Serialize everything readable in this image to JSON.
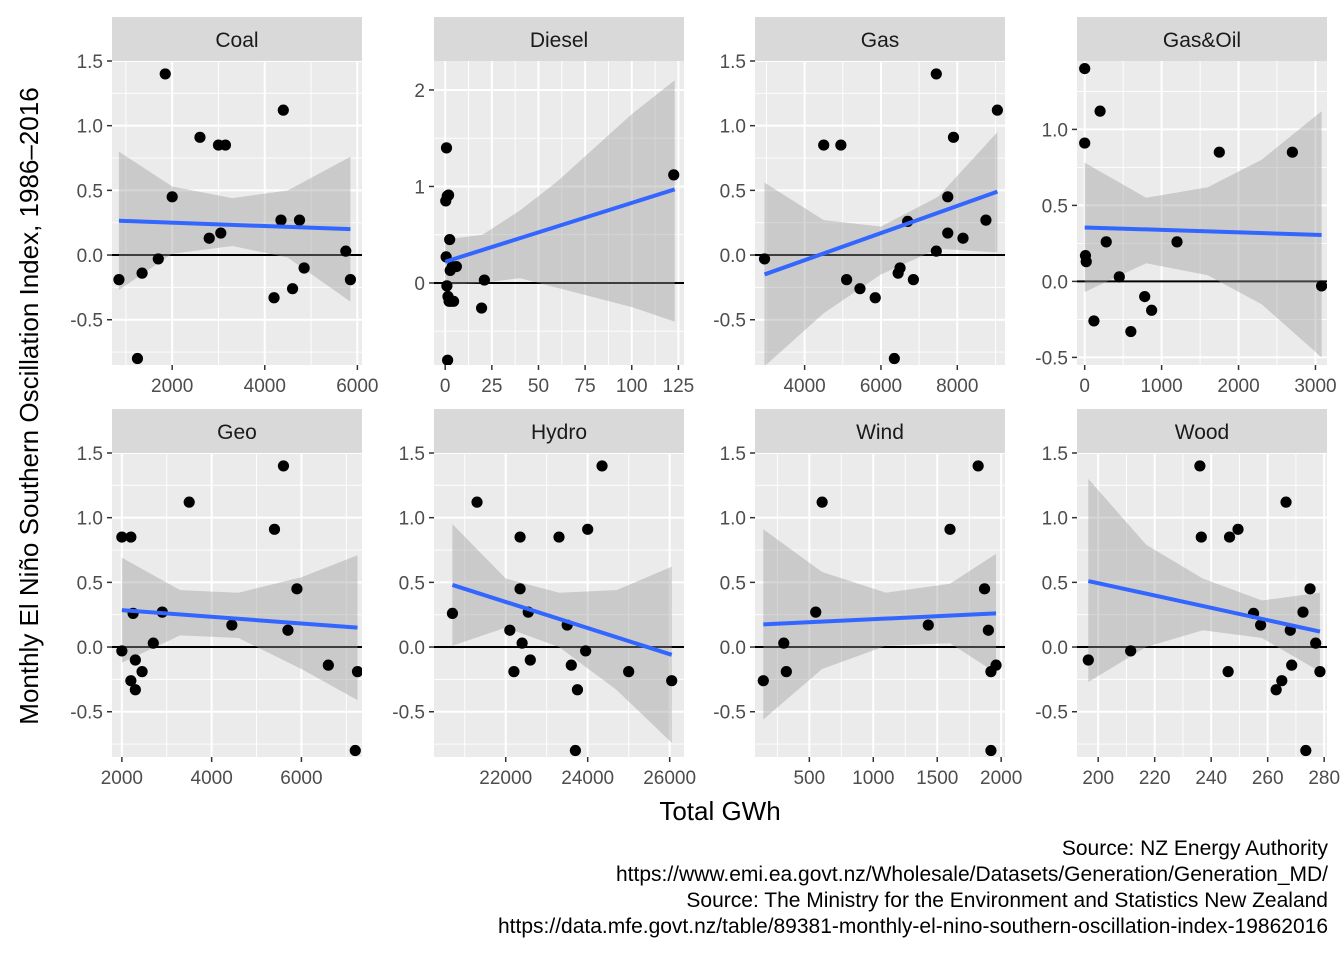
{
  "figure": {
    "xlabel": "Total GWh",
    "ylabel": "Monthly El Niño Southern Oscillation Index, 1986–2016",
    "captions": [
      "Source: NZ Energy Authority",
      "https://www.emi.ea.govt.nz/Wholesale/Datasets/Generation/Generation_MD/",
      "Source: The Ministry for the Environment and Statistics New Zealand",
      "https://data.mfe.govt.nz/table/89381-monthly-el-nino-southern-oscillation-index-19862016"
    ]
  },
  "colors": {
    "panel_bg": "#ebebeb",
    "strip_bg": "#d9d9d9",
    "grid": "#ffffff",
    "point": "#000000",
    "fit_line": "#3366ff",
    "ribbon": "#999999",
    "hline": "#000000",
    "tick_text": "#4d4d4d",
    "strip_text": "#1a1a1a"
  },
  "chart_data": [
    {
      "type": "scatter",
      "title": "Coal",
      "xlim": [
        700,
        6100
      ],
      "ylim": [
        -0.85,
        1.5
      ],
      "x_ticks": [
        2000,
        4000,
        6000
      ],
      "x_tick_labels": [
        "2000",
        "4000",
        "6000"
      ],
      "y_ticks": [
        -0.5,
        0,
        0.5,
        1,
        1.5
      ],
      "y_tick_labels": [
        "-0.5",
        "0.0",
        "0.5",
        "1.0",
        "1.5"
      ],
      "points": [
        [
          850,
          -0.19
        ],
        [
          1250,
          -0.8
        ],
        [
          1350,
          -0.14
        ],
        [
          1700,
          -0.03
        ],
        [
          1850,
          1.4
        ],
        [
          2000,
          0.45
        ],
        [
          2600,
          0.91
        ],
        [
          2800,
          0.13
        ],
        [
          3000,
          0.85
        ],
        [
          3050,
          0.17
        ],
        [
          3150,
          0.85
        ],
        [
          4200,
          -0.33
        ],
        [
          4350,
          0.27
        ],
        [
          4400,
          1.12
        ],
        [
          4600,
          -0.26
        ],
        [
          4750,
          0.27
        ],
        [
          4850,
          -0.1
        ],
        [
          5750,
          0.03
        ],
        [
          5850,
          -0.19
        ]
      ],
      "fit": {
        "x": [
          850,
          5850
        ],
        "y": [
          0.265,
          0.2
        ]
      },
      "ribbon": {
        "x": [
          850,
          2000,
          3300,
          4500,
          5850
        ],
        "upper": [
          0.8,
          0.53,
          0.44,
          0.5,
          0.76
        ],
        "lower": [
          -0.27,
          0.01,
          0.07,
          -0.02,
          -0.36
        ]
      },
      "hline": 0
    },
    {
      "type": "scatter",
      "title": "Diesel",
      "xlim": [
        -6,
        128
      ],
      "ylim": [
        -0.85,
        2.3
      ],
      "x_ticks": [
        0,
        25,
        50,
        75,
        100,
        125
      ],
      "x_tick_labels": [
        "0",
        "25",
        "50",
        "75",
        "100",
        "125"
      ],
      "y_ticks": [
        0,
        1,
        2
      ],
      "y_tick_labels": [
        "0",
        "1",
        "2"
      ],
      "points": [
        [
          0.3,
          0.85
        ],
        [
          0.5,
          0.27
        ],
        [
          0.7,
          1.4
        ],
        [
          0.9,
          -0.03
        ],
        [
          1.1,
          0.9
        ],
        [
          1.3,
          -0.8
        ],
        [
          1.5,
          -0.14
        ],
        [
          1.8,
          0.91
        ],
        [
          2.1,
          -0.19
        ],
        [
          2.4,
          0.45
        ],
        [
          2.7,
          0.13
        ],
        [
          3.2,
          -0.19
        ],
        [
          3.8,
          0.17
        ],
        [
          4.5,
          -0.19
        ],
        [
          6,
          0.17
        ],
        [
          19.5,
          -0.26
        ],
        [
          21,
          0.03
        ],
        [
          122.5,
          1.12
        ]
      ],
      "fit": {
        "x": [
          0,
          123
        ],
        "y": [
          0.22,
          0.97
        ]
      },
      "ribbon": {
        "x": [
          0,
          20,
          40,
          60,
          80,
          100,
          123
        ],
        "upper": [
          0.45,
          0.5,
          0.75,
          1.05,
          1.4,
          1.75,
          2.1
        ],
        "lower": [
          -0.02,
          0.0,
          0.05,
          -0.05,
          -0.15,
          -0.25,
          -0.4
        ]
      },
      "hline": 0
    },
    {
      "type": "scatter",
      "title": "Gas",
      "xlim": [
        2700,
        9250
      ],
      "ylim": [
        -0.85,
        1.5
      ],
      "x_ticks": [
        4000,
        6000,
        8000
      ],
      "x_tick_labels": [
        "4000",
        "6000",
        "8000"
      ],
      "y_ticks": [
        -0.5,
        0,
        0.5,
        1,
        1.5
      ],
      "y_tick_labels": [
        "-0.5",
        "0.0",
        "0.5",
        "1.0",
        "1.5"
      ],
      "points": [
        [
          2950,
          -0.03
        ],
        [
          4500,
          0.85
        ],
        [
          4950,
          0.85
        ],
        [
          5100,
          -0.19
        ],
        [
          5450,
          -0.26
        ],
        [
          5850,
          -0.33
        ],
        [
          6350,
          -0.8
        ],
        [
          6450,
          -0.14
        ],
        [
          6500,
          -0.1
        ],
        [
          6700,
          0.26
        ],
        [
          6850,
          -0.19
        ],
        [
          7450,
          1.4
        ],
        [
          7450,
          0.03
        ],
        [
          7750,
          0.45
        ],
        [
          7750,
          0.17
        ],
        [
          7900,
          0.91
        ],
        [
          8150,
          0.13
        ],
        [
          8750,
          0.27
        ],
        [
          9050,
          1.12
        ]
      ],
      "fit": {
        "x": [
          2950,
          9050
        ],
        "y": [
          -0.15,
          0.49
        ]
      },
      "ribbon": {
        "x": [
          2950,
          4500,
          6000,
          7500,
          9050
        ],
        "upper": [
          0.56,
          0.27,
          0.22,
          0.45,
          0.95
        ],
        "lower": [
          -0.86,
          -0.45,
          -0.15,
          0.05,
          0.02
        ]
      },
      "hline": 0
    },
    {
      "type": "scatter",
      "title": "Gas&Oil",
      "xlim": [
        -100,
        3150
      ],
      "ylim": [
        -0.55,
        1.45
      ],
      "x_ticks": [
        0,
        1000,
        2000,
        3000
      ],
      "x_tick_labels": [
        "0",
        "1000",
        "2000",
        "3000"
      ],
      "y_ticks": [
        -0.5,
        0,
        0.5,
        1
      ],
      "y_tick_labels": [
        "-0.5",
        "0.0",
        "0.5",
        "1.0"
      ],
      "points": [
        [
          0,
          1.4
        ],
        [
          0,
          0.91
        ],
        [
          10,
          0.17
        ],
        [
          20,
          0.13
        ],
        [
          120,
          -0.26
        ],
        [
          200,
          1.12
        ],
        [
          280,
          0.26
        ],
        [
          450,
          0.03
        ],
        [
          600,
          -0.33
        ],
        [
          780,
          -0.1
        ],
        [
          870,
          -0.19
        ],
        [
          1200,
          0.26
        ],
        [
          1750,
          0.85
        ],
        [
          2700,
          0.85
        ],
        [
          3080,
          -0.03
        ]
      ],
      "fit": {
        "x": [
          0,
          3080
        ],
        "y": [
          0.355,
          0.305
        ]
      },
      "ribbon": {
        "x": [
          0,
          800,
          1600,
          2300,
          3080
        ],
        "upper": [
          0.78,
          0.55,
          0.62,
          0.8,
          1.12
        ],
        "lower": [
          -0.07,
          0.12,
          0.04,
          -0.15,
          -0.5
        ]
      },
      "hline": 0
    },
    {
      "type": "scatter",
      "title": "Geo",
      "xlim": [
        1780,
        7350
      ],
      "ylim": [
        -0.85,
        1.5
      ],
      "x_ticks": [
        2000,
        4000,
        6000
      ],
      "x_tick_labels": [
        "2000",
        "4000",
        "6000"
      ],
      "y_ticks": [
        -0.5,
        0,
        0.5,
        1,
        1.5
      ],
      "y_tick_labels": [
        "-0.5",
        "0.0",
        "0.5",
        "1.0",
        "1.5"
      ],
      "points": [
        [
          2000,
          0.85
        ],
        [
          2000,
          -0.03
        ],
        [
          2200,
          0.85
        ],
        [
          2200,
          -0.26
        ],
        [
          2250,
          0.26
        ],
        [
          2300,
          -0.1
        ],
        [
          2300,
          -0.33
        ],
        [
          2450,
          -0.19
        ],
        [
          2700,
          0.03
        ],
        [
          2900,
          0.27
        ],
        [
          3500,
          1.12
        ],
        [
          4450,
          0.17
        ],
        [
          5400,
          0.91
        ],
        [
          5600,
          1.4
        ],
        [
          5700,
          0.13
        ],
        [
          5900,
          0.45
        ],
        [
          6600,
          -0.14
        ],
        [
          7200,
          -0.8
        ],
        [
          7250,
          -0.19
        ]
      ],
      "fit": {
        "x": [
          2000,
          7250
        ],
        "y": [
          0.285,
          0.15
        ]
      },
      "ribbon": {
        "x": [
          2000,
          3300,
          4600,
          6000,
          7250
        ],
        "upper": [
          0.69,
          0.44,
          0.42,
          0.54,
          0.71
        ],
        "lower": [
          -0.12,
          0.09,
          0.07,
          -0.17,
          -0.41
        ]
      },
      "hline": 0
    },
    {
      "type": "scatter",
      "title": "Hydro",
      "xlim": [
        20250,
        26350
      ],
      "ylim": [
        -0.85,
        1.5
      ],
      "x_ticks": [
        22000,
        24000,
        26000
      ],
      "x_tick_labels": [
        "22000",
        "24000",
        "26000"
      ],
      "y_ticks": [
        -0.5,
        0,
        0.5,
        1,
        1.5
      ],
      "y_tick_labels": [
        "-0.5",
        "0.0",
        "0.5",
        "1.0",
        "1.5"
      ],
      "points": [
        [
          20700,
          0.26
        ],
        [
          21300,
          1.12
        ],
        [
          22100,
          0.13
        ],
        [
          22200,
          -0.19
        ],
        [
          22350,
          0.85
        ],
        [
          22350,
          0.45
        ],
        [
          22400,
          0.03
        ],
        [
          22550,
          0.27
        ],
        [
          22600,
          -0.1
        ],
        [
          23300,
          0.85
        ],
        [
          23500,
          0.17
        ],
        [
          23600,
          -0.14
        ],
        [
          23700,
          -0.8
        ],
        [
          23750,
          -0.33
        ],
        [
          23950,
          -0.03
        ],
        [
          24000,
          0.91
        ],
        [
          24350,
          1.4
        ],
        [
          25000,
          -0.19
        ],
        [
          26050,
          -0.26
        ]
      ],
      "fit": {
        "x": [
          20700,
          26050
        ],
        "y": [
          0.48,
          -0.06
        ]
      },
      "ribbon": {
        "x": [
          20700,
          22000,
          23300,
          24700,
          26050
        ],
        "upper": [
          0.95,
          0.53,
          0.42,
          0.44,
          0.62
        ],
        "lower": [
          0.01,
          0.15,
          0.0,
          -0.33,
          -0.74
        ]
      },
      "hline": 0
    },
    {
      "type": "scatter",
      "title": "Wind",
      "xlim": [
        75,
        2030
      ],
      "ylim": [
        -0.85,
        1.5
      ],
      "x_ticks": [
        500,
        1000,
        1500,
        2000
      ],
      "x_tick_labels": [
        "500",
        "1000",
        "1500",
        "2000"
      ],
      "y_ticks": [
        -0.5,
        0,
        0.5,
        1,
        1.5
      ],
      "y_tick_labels": [
        "-0.5",
        "0.0",
        "0.5",
        "1.0",
        "1.5"
      ],
      "points": [
        [
          140,
          -0.26
        ],
        [
          300,
          0.03
        ],
        [
          320,
          -0.19
        ],
        [
          550,
          0.27
        ],
        [
          600,
          1.12
        ],
        [
          1430,
          0.17
        ],
        [
          1600,
          0.91
        ],
        [
          1820,
          1.4
        ],
        [
          1870,
          0.45
        ],
        [
          1900,
          0.13
        ],
        [
          1920,
          -0.19
        ],
        [
          1920,
          -0.8
        ],
        [
          1960,
          -0.14
        ]
      ],
      "fit": {
        "x": [
          140,
          1960
        ],
        "y": [
          0.175,
          0.26
        ]
      },
      "ribbon": {
        "x": [
          140,
          600,
          1100,
          1600,
          1960
        ],
        "upper": [
          0.91,
          0.58,
          0.42,
          0.49,
          0.72
        ],
        "lower": [
          -0.56,
          -0.17,
          0.01,
          0.03,
          -0.2
        ]
      },
      "hline": 0
    },
    {
      "type": "scatter",
      "title": "Wood",
      "xlim": [
        192.5,
        281
      ],
      "ylim": [
        -0.85,
        1.5
      ],
      "x_ticks": [
        200,
        220,
        240,
        260,
        280
      ],
      "x_tick_labels": [
        "200",
        "220",
        "240",
        "260",
        "280"
      ],
      "y_ticks": [
        -0.5,
        0,
        0.5,
        1,
        1.5
      ],
      "y_tick_labels": [
        "-0.5",
        "0.0",
        "0.5",
        "1.0",
        "1.5"
      ],
      "points": [
        [
          196.5,
          -0.1
        ],
        [
          211.5,
          -0.03
        ],
        [
          236,
          1.4
        ],
        [
          236.5,
          0.85
        ],
        [
          246,
          -0.19
        ],
        [
          246.5,
          0.85
        ],
        [
          249.5,
          0.91
        ],
        [
          255,
          0.26
        ],
        [
          257.5,
          0.17
        ],
        [
          263,
          -0.33
        ],
        [
          265,
          -0.26
        ],
        [
          266.5,
          1.12
        ],
        [
          268,
          0.13
        ],
        [
          268.5,
          -0.14
        ],
        [
          272.5,
          0.27
        ],
        [
          273.5,
          -0.8
        ],
        [
          275,
          0.45
        ],
        [
          277,
          0.03
        ],
        [
          278.5,
          -0.19
        ]
      ],
      "fit": {
        "x": [
          196.5,
          278.5
        ],
        "y": [
          0.51,
          0.12
        ]
      },
      "ribbon": {
        "x": [
          196.5,
          217,
          237,
          258,
          278.5
        ],
        "upper": [
          1.3,
          0.79,
          0.53,
          0.36,
          0.42
        ],
        "lower": [
          -0.27,
          0.0,
          0.13,
          0.07,
          -0.19
        ]
      },
      "hline": 0
    }
  ]
}
